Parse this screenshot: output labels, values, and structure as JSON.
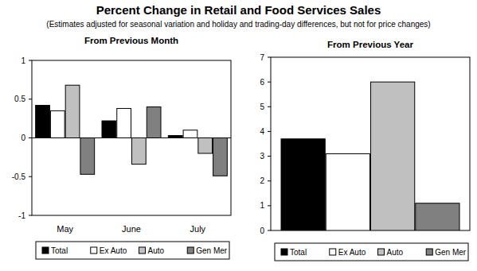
{
  "title": "Percent Change in Retail and Food Services Sales",
  "subtitle": "(Estimates adjusted for seasonal variation and holiday and trading-day differences, but not for price changes)",
  "chart_data": [
    {
      "type": "bar",
      "title": "From Previous Month",
      "categories": [
        "May",
        "June",
        "July"
      ],
      "series": [
        {
          "name": "Total",
          "color": "#000000",
          "values": [
            0.42,
            0.22,
            0.03
          ]
        },
        {
          "name": "Ex Auto",
          "color": "#ffffff",
          "values": [
            0.35,
            0.38,
            0.1
          ]
        },
        {
          "name": "Auto",
          "color": "#c0c0c0",
          "values": [
            0.68,
            -0.34,
            -0.2
          ]
        },
        {
          "name": "Gen Mer",
          "color": "#808080",
          "values": [
            -0.47,
            0.4,
            -0.49
          ]
        }
      ],
      "ylim": [
        -1,
        1
      ],
      "yticks": [
        -1,
        -0.5,
        0,
        0.5,
        1
      ],
      "grid": false,
      "legend": "bottom"
    },
    {
      "type": "bar",
      "title": "From Previous Year",
      "categories": [
        null
      ],
      "series": [
        {
          "name": "Total",
          "color": "#000000",
          "values": [
            3.7
          ]
        },
        {
          "name": "Ex Auto",
          "color": "#ffffff",
          "values": [
            3.1
          ]
        },
        {
          "name": "Auto",
          "color": "#c0c0c0",
          "values": [
            6.0
          ]
        },
        {
          "name": "Gen Mer",
          "color": "#808080",
          "values": [
            1.1
          ]
        }
      ],
      "ylim": [
        0,
        7
      ],
      "yticks": [
        0,
        1,
        2,
        3,
        4,
        5,
        6,
        7
      ],
      "grid": false,
      "legend": "bottom"
    }
  ]
}
